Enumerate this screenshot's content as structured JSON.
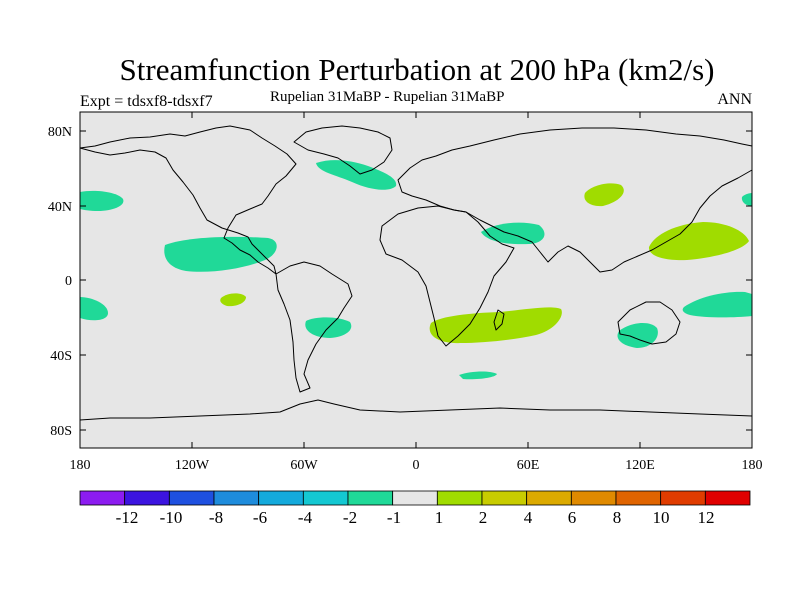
{
  "title": "Streamfunction Perturbation at 200 hPa (km2/s)",
  "experiment_label": "Expt = tdsxf8-tdsxf7",
  "subtitle": "Rupelian  31MaBP - Rupelian  31MaBP",
  "season": "ANN",
  "lat_ticks": [
    "80N",
    "40N",
    "0",
    "40S",
    "80S"
  ],
  "lon_ticks": [
    "180",
    "120W",
    "60W",
    "0",
    "60E",
    "120E",
    "180"
  ],
  "colors": {
    "background": "#e6e6e6",
    "neg_small": "#20d998",
    "pos_small": "#a0dc00"
  },
  "colorbar": {
    "colors": [
      "#8c1cf0",
      "#3c14e0",
      "#1e50e0",
      "#1e8cdc",
      "#14aadc",
      "#14c8d2",
      "#20d998",
      "#e6e6e6",
      "#a0dc00",
      "#c8cc00",
      "#dcaa00",
      "#e08a00",
      "#e06400",
      "#e03c00",
      "#e00000"
    ],
    "labels": [
      "-12",
      "-10",
      "-8",
      "-6",
      "-4",
      "-2",
      "-1",
      "1",
      "2",
      "4",
      "6",
      "8",
      "10",
      "12"
    ]
  }
}
